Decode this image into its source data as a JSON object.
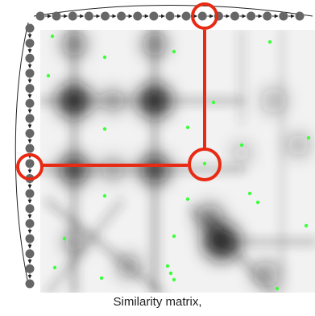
{
  "caption": "Similarity matrix,",
  "colors": {
    "sequence_node": "#666666",
    "highlight": "#e82a14",
    "marker": "#3cff3c",
    "matrix_dark": "#141414",
    "matrix_light": "#ffffff"
  },
  "sequences": {
    "top_node_count": 17,
    "left_node_count": 18,
    "highlighted_top_index": 11,
    "highlighted_left_index": 10
  },
  "matrix_markers_count": 24
}
